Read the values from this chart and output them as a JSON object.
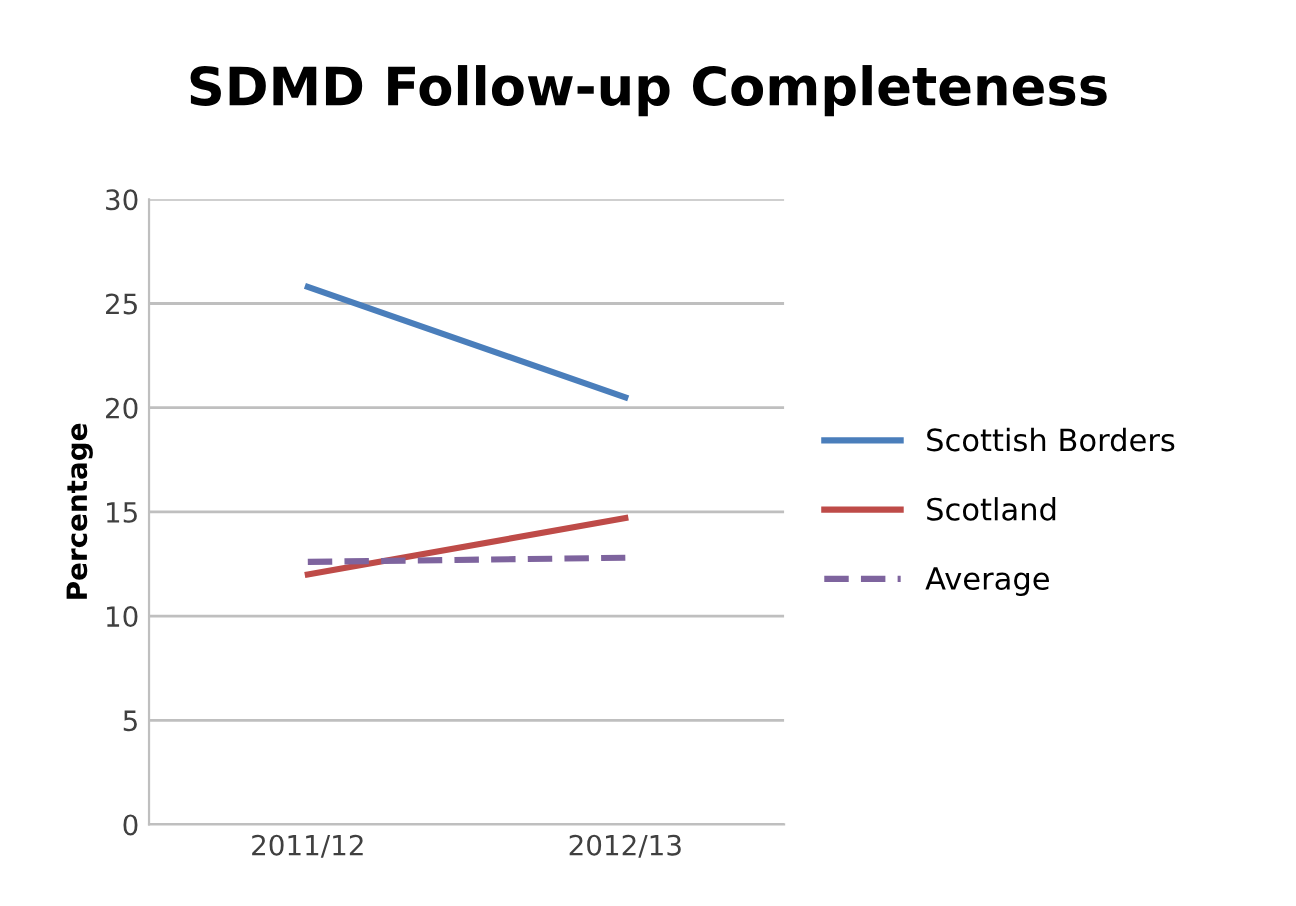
{
  "chart_data": {
    "type": "line",
    "title": "SDMD Follow-up Completeness",
    "ylabel": "Percentage",
    "categories": [
      "2011/12",
      "2012/13"
    ],
    "series": [
      {
        "name": "Scottish Borders",
        "color": "#4a7ebb",
        "values": [
          25.8,
          20.5
        ]
      },
      {
        "name": "Scotland",
        "color": "#be4b48",
        "values": [
          12.0,
          14.7
        ]
      },
      {
        "name": "Average",
        "color": "#7e649e",
        "values": [
          12.6,
          12.8
        ],
        "line_style": "dashed"
      }
    ],
    "ylim": [
      0,
      30
    ],
    "yticks": [
      0,
      5,
      10,
      15,
      20,
      25,
      30
    ],
    "grid": "y",
    "legend": "right",
    "marker": "none"
  }
}
